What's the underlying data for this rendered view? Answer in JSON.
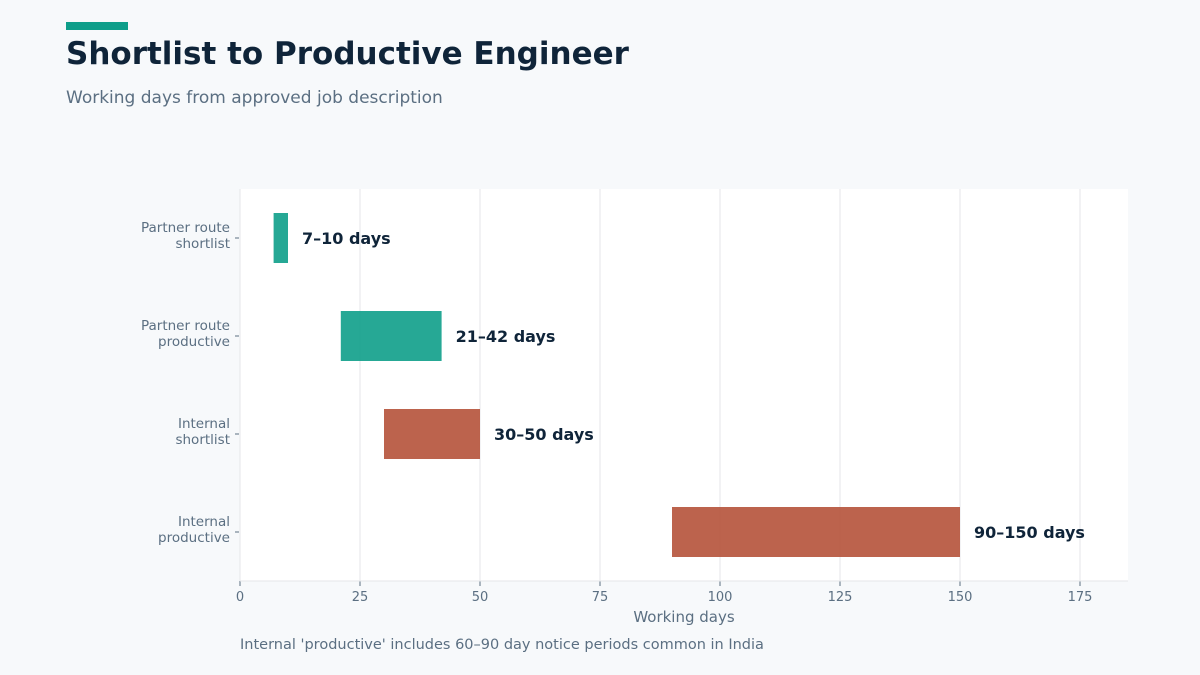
{
  "header": {
    "title": "Shortlist to Productive Engineer",
    "subtitle": "Working days from approved job description"
  },
  "footer": {
    "note": "Internal 'productive' includes 60–90 day notice periods common in India"
  },
  "colors": {
    "accent": "#0e9e8a",
    "partner": "#0e9e8a",
    "internal": "#b5523a",
    "text_dark": "#0f2439",
    "text_muted": "#5b6f82",
    "grid": "#e4e6e9"
  },
  "chart_data": {
    "type": "bar",
    "orientation": "horizontal-range",
    "xlabel": "Working days",
    "xlim": [
      0,
      185
    ],
    "x_ticks": [
      0,
      25,
      50,
      75,
      100,
      125,
      150,
      175
    ],
    "grid": true,
    "categories": [
      [
        "Partner route",
        "shortlist"
      ],
      [
        "Partner route",
        "productive"
      ],
      [
        "Internal",
        "shortlist"
      ],
      [
        "Internal",
        "productive"
      ]
    ],
    "ranges": [
      {
        "start": 7,
        "end": 10,
        "label": "7–10 days",
        "group": "partner"
      },
      {
        "start": 21,
        "end": 42,
        "label": "21–42 days",
        "group": "partner"
      },
      {
        "start": 30,
        "end": 50,
        "label": "30–50 days",
        "group": "internal"
      },
      {
        "start": 90,
        "end": 150,
        "label": "90–150 days",
        "group": "internal"
      }
    ]
  }
}
